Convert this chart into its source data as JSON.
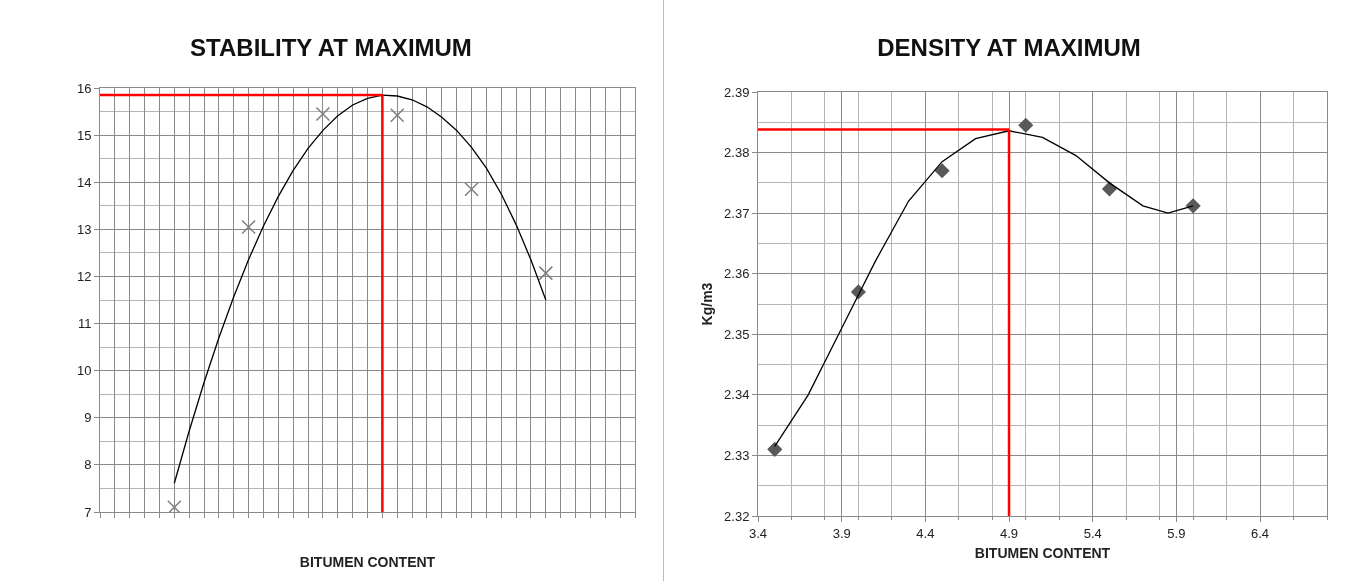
{
  "chart_data": [
    {
      "type": "scatter",
      "title": "STABILITY AT MAXIMUM",
      "xlabel": "BITUMEN CONTENT",
      "tick_labels": "y",
      "marker": "cross",
      "grid": true,
      "categories": [
        null,
        null,
        null,
        null,
        null,
        null,
        null,
        null,
        null,
        null,
        null,
        null,
        null,
        null,
        null,
        null,
        null,
        null,
        null,
        null,
        null,
        null,
        null,
        null,
        null,
        null,
        null,
        null,
        null,
        null,
        null,
        null,
        null,
        null,
        null,
        null,
        null
      ],
      "ylim": [
        7,
        16
      ],
      "yticks": [
        7,
        8,
        9,
        10,
        11,
        12,
        13,
        14,
        15,
        16
      ],
      "series": [
        {
          "color": "#7f7f7f",
          "values": [
            null,
            null,
            null,
            null,
            null,
            7.1,
            null,
            null,
            null,
            null,
            13.05,
            null,
            null,
            null,
            null,
            15.45,
            null,
            null,
            null,
            null,
            15.42,
            null,
            null,
            null,
            null,
            13.85,
            null,
            null,
            null,
            null,
            12.07,
            null,
            null,
            null,
            null,
            null,
            null
          ]
        },
        {
          "type": "line",
          "color": "#000000",
          "marker": "none",
          "values": [
            null,
            null,
            null,
            null,
            null,
            7.61,
            8.72,
            9.75,
            10.7,
            11.57,
            12.36,
            13.07,
            13.7,
            14.25,
            14.72,
            15.1,
            15.41,
            15.64,
            15.78,
            15.85,
            15.83,
            15.75,
            15.6,
            15.38,
            15.1,
            14.74,
            14.3,
            13.75,
            13.1,
            12.35,
            11.5,
            null,
            null,
            null,
            null,
            null,
            null
          ]
        }
      ],
      "ref_lines": [
        {
          "axis": "y",
          "value": 15.85,
          "color": "#ff0000"
        }
      ]
    },
    {
      "type": "scatter",
      "title": "DENSITY AT MAXIMUM",
      "xlabel": "BITUMEN CONTENT",
      "ylabel": "Kg/m3",
      "marker": "diamond",
      "grid": true,
      "x": [
        3.5,
        4.0,
        4.5,
        5.0,
        5.5,
        6.0
      ],
      "xlim": [
        3.4,
        6.8
      ],
      "xticks": [
        3.4,
        3.9,
        4.4,
        4.9,
        5.4,
        5.9,
        6.4
      ],
      "ylim": [
        2.32,
        2.39
      ],
      "yticks": [
        2.32,
        2.33,
        2.34,
        2.35,
        2.36,
        2.37,
        2.38,
        2.39
      ],
      "series": [
        {
          "color": "#595959",
          "values": [
            2.331,
            2.357,
            2.377,
            2.3845,
            2.374,
            2.3712
          ]
        },
        {
          "type": "line",
          "color": "#000000",
          "marker": "none",
          "x": [
            3.5,
            3.7,
            3.9,
            4.1,
            4.3,
            4.5,
            4.7,
            4.9,
            5.1,
            5.3,
            5.5,
            5.7,
            5.85,
            6.0
          ],
          "values": [
            2.3315,
            2.34,
            2.351,
            2.362,
            2.372,
            2.3785,
            2.3823,
            2.3836,
            2.3825,
            2.3795,
            2.375,
            2.3712,
            2.37,
            2.3712
          ]
        }
      ],
      "ref_lines": [
        {
          "axis": "y",
          "value": 2.3838,
          "color": "#ff0000"
        },
        {
          "axis": "x",
          "value": 4.9,
          "color": "#ff0000"
        }
      ]
    }
  ]
}
